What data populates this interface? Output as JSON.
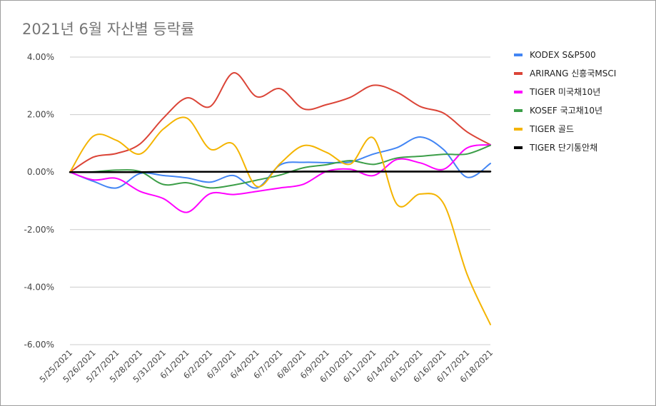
{
  "chart_data": {
    "type": "line",
    "title": "2021년 6월 자산별 등락률",
    "xlabel": "",
    "ylabel": "",
    "ylim": [
      -6,
      4
    ],
    "y_ticks": [
      4,
      2,
      0,
      -2,
      -4,
      -6
    ],
    "y_tick_labels": [
      "4.00%",
      "2.00%",
      "0.00%",
      "-2.00%",
      "-4.00%",
      "-6.00%"
    ],
    "grid": true,
    "legend_position": "right",
    "categories": [
      "5/25/2021",
      "5/26/2021",
      "5/27/2021",
      "5/28/2021",
      "5/31/2021",
      "6/1/2021",
      "6/2/2021",
      "6/3/2021",
      "6/4/2021",
      "6/7/2021",
      "6/8/2021",
      "6/9/2021",
      "6/10/2021",
      "6/11/2021",
      "6/14/2021",
      "6/15/2021",
      "6/16/2021",
      "6/17/2021",
      "6/18/2021"
    ],
    "series": [
      {
        "name": "KODEX S&P500",
        "color": "#4285f4",
        "values": [
          0,
          -0.32,
          -0.55,
          -0.05,
          -0.12,
          -0.2,
          -0.35,
          -0.12,
          -0.55,
          0.25,
          0.34,
          0.33,
          0.35,
          0.63,
          0.85,
          1.22,
          0.78,
          -0.18,
          0.3
        ]
      },
      {
        "name": "ARIRANG 신흥국MSCI",
        "color": "#db4437",
        "values": [
          0,
          0.52,
          0.65,
          0.98,
          1.88,
          2.58,
          2.28,
          3.45,
          2.62,
          2.9,
          2.2,
          2.35,
          2.6,
          3.02,
          2.78,
          2.28,
          2.05,
          1.4,
          0.95
        ]
      },
      {
        "name": "TIGER 미국채10년",
        "color": "#ff00ff",
        "values": [
          0,
          -0.27,
          -0.22,
          -0.67,
          -0.92,
          -1.4,
          -0.75,
          -0.78,
          -0.67,
          -0.55,
          -0.42,
          0.03,
          0.1,
          -0.12,
          0.44,
          0.32,
          0.1,
          0.84,
          0.95
        ]
      },
      {
        "name": "KOSEF 국고채10년",
        "color": "#3c9e48",
        "values": [
          0,
          0.01,
          0.07,
          0.02,
          -0.43,
          -0.37,
          -0.55,
          -0.45,
          -0.28,
          -0.1,
          0.15,
          0.26,
          0.4,
          0.27,
          0.49,
          0.55,
          0.62,
          0.63,
          0.93
        ]
      },
      {
        "name": "TIGER 골드",
        "color": "#f4b400",
        "values": [
          0,
          1.25,
          1.1,
          0.63,
          1.5,
          1.88,
          0.8,
          0.97,
          -0.5,
          0.3,
          0.92,
          0.68,
          0.28,
          1.18,
          -1.12,
          -0.76,
          -1.1,
          -3.55,
          -5.3
        ]
      },
      {
        "name": "TIGER 단기통안채",
        "color": "#000000",
        "values": [
          0,
          0,
          0,
          0,
          0.01,
          0.01,
          0.01,
          0.01,
          0.01,
          0.01,
          0.02,
          0.02,
          0.02,
          0.02,
          0.02,
          0.02,
          0.02,
          0.02,
          0.02
        ]
      }
    ]
  }
}
